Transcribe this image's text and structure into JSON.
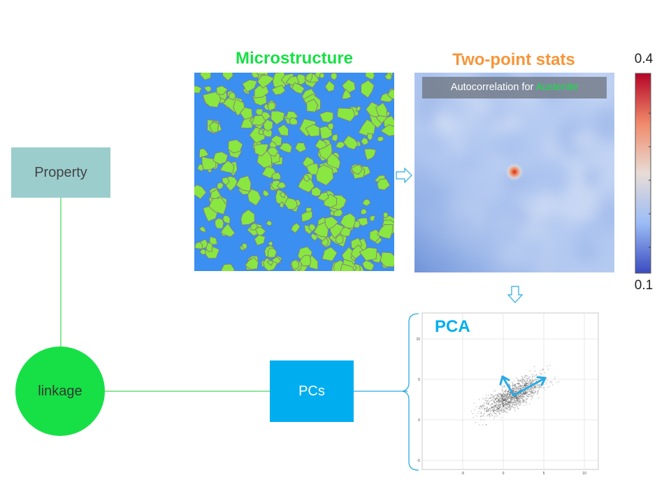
{
  "diagram": {
    "microstructure_title": "Microstructure",
    "two_point_title": "Two-point stats",
    "autocorrelation": {
      "prefix": "Autocorrelation for ",
      "phase": "Austenite"
    },
    "colorbar": {
      "max_label": "0.4",
      "min_label": "0.1"
    },
    "property_label": "Property",
    "linkage_label": "linkage",
    "pcs_label": "PCs",
    "pca_title": "PCA"
  },
  "pca_plot": {
    "x_ticks": [
      "-5",
      "0",
      "5",
      "10"
    ],
    "y_ticks": [
      "10",
      "5",
      "0",
      "-5"
    ]
  },
  "colors": {
    "microstructure_green": "#8ae640",
    "microstructure_blue": "#3b8ff0",
    "two_point_orange": "#f5953a",
    "austenite_green": "#17e046",
    "property_box": "#9bcdcd",
    "linkage_circle": "#17e046",
    "pcs_box": "#00aeef",
    "connector_green": "#4ad860",
    "arrow_blue": "#2aaae4"
  },
  "icons": [
    "right-arrow-icon",
    "down-arrow-icon",
    "pca-axes-arrows-icon"
  ]
}
